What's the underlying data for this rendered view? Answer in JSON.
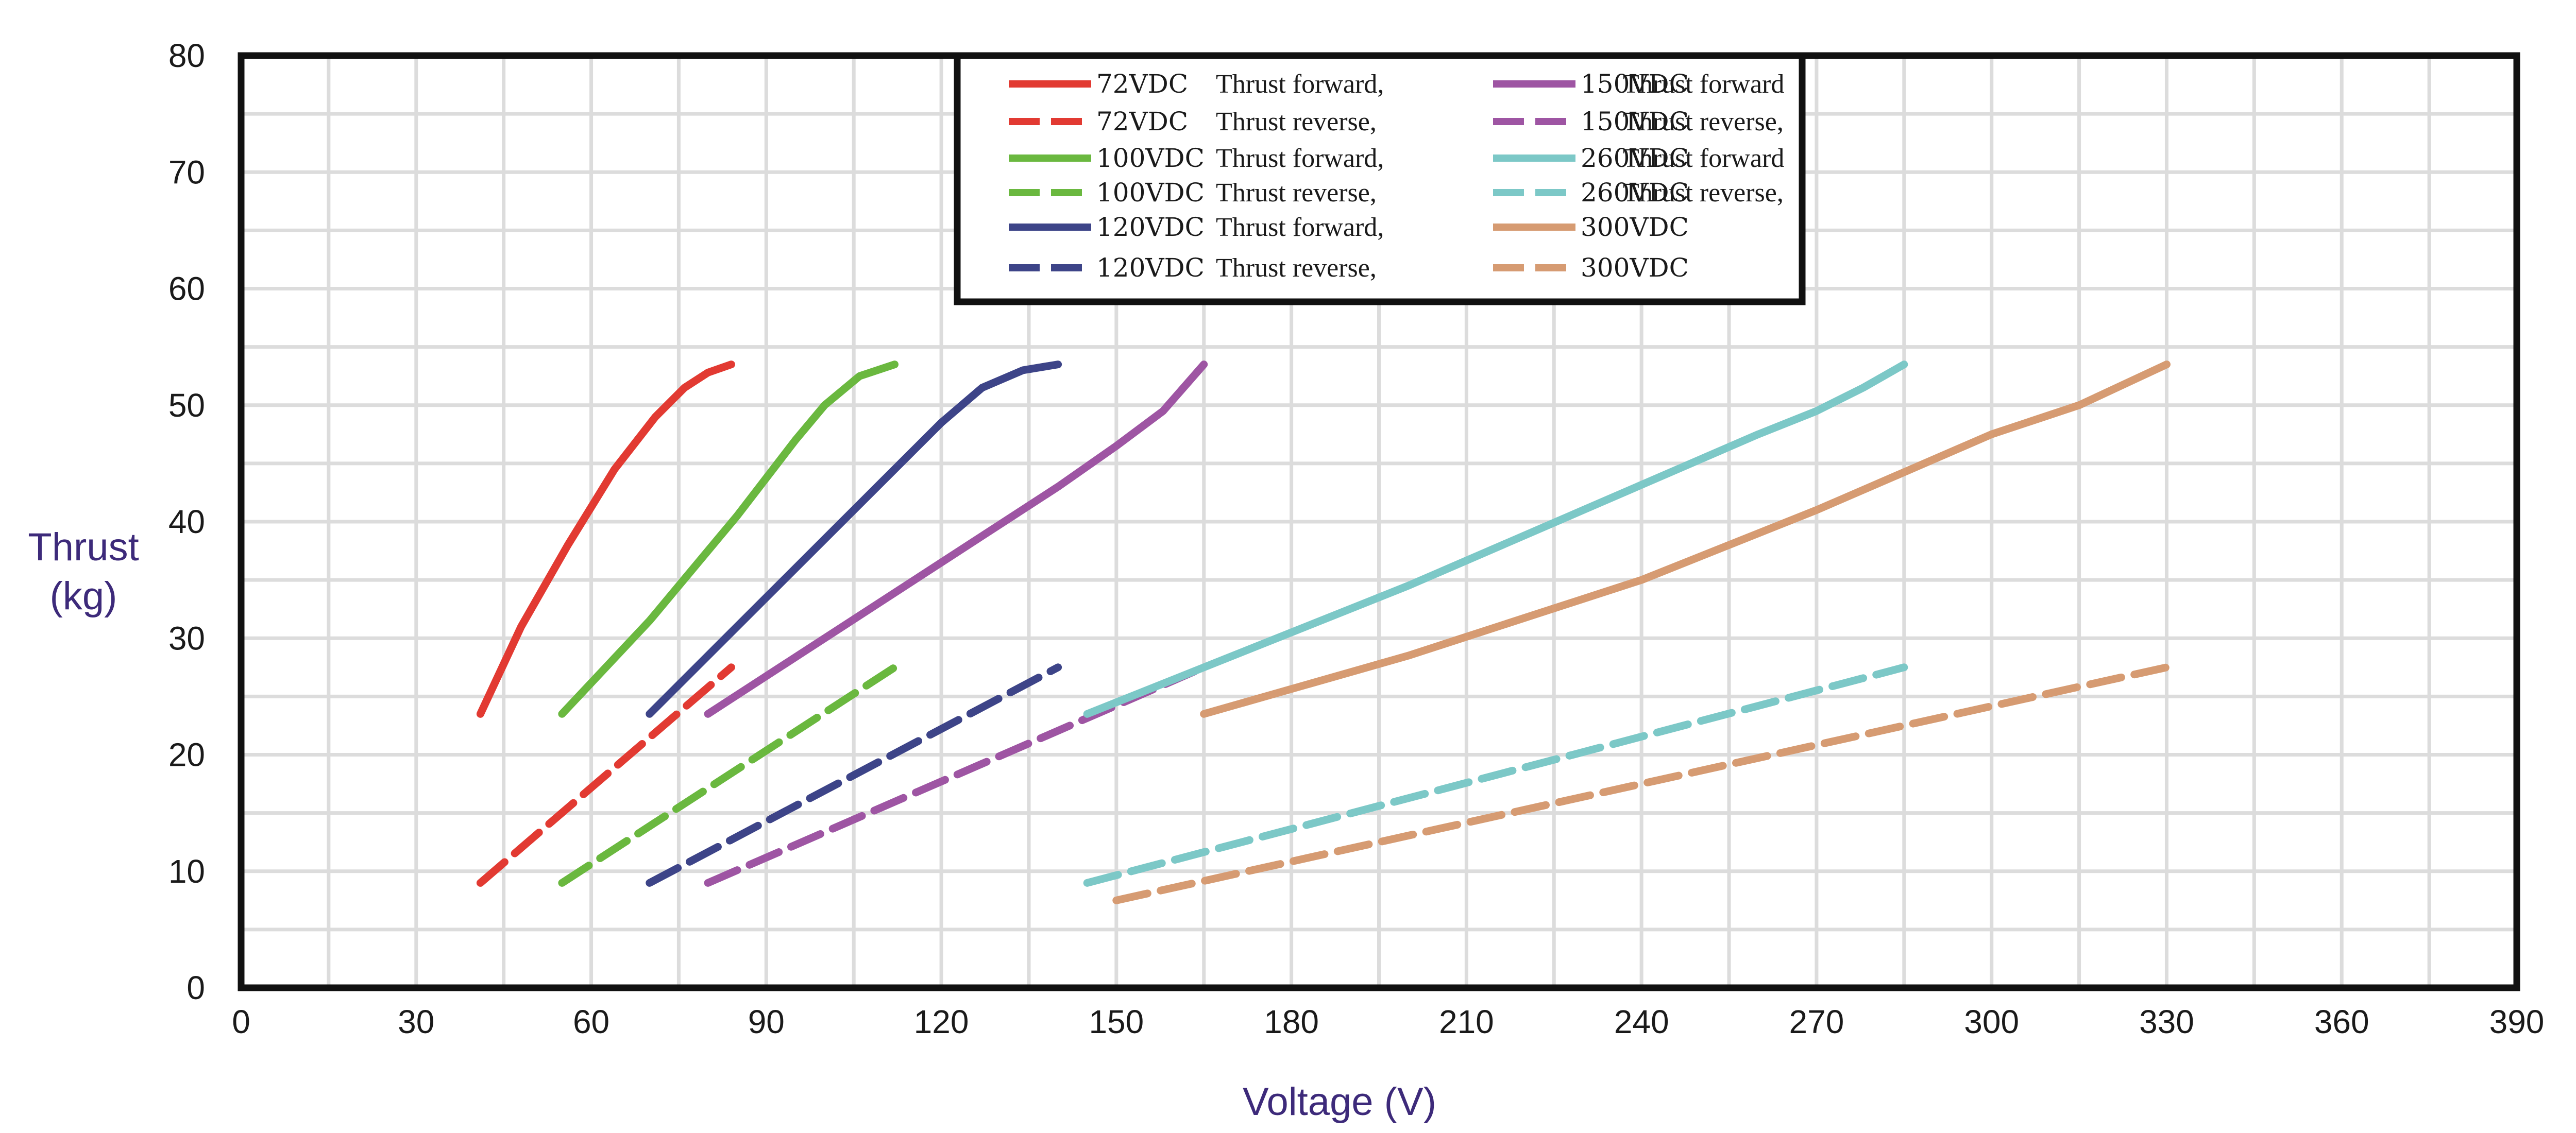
{
  "chart_data": {
    "type": "line",
    "title": "",
    "xlabel": "Voltage (V)",
    "ylabel": "Thrust (kg)",
    "ylabel_lines": [
      "Thrust",
      "(kg)"
    ],
    "xlim": [
      0,
      390
    ],
    "ylim": [
      0,
      80
    ],
    "x_ticks": [
      0,
      30,
      60,
      90,
      120,
      150,
      180,
      210,
      240,
      270,
      300,
      330,
      360,
      390
    ],
    "y_ticks": [
      0,
      10,
      20,
      30,
      40,
      50,
      60,
      70,
      80
    ],
    "grid": true,
    "legend_position": "top-center",
    "series": [
      {
        "name": "72VDC Thrust forward,",
        "voltage": "72VDC",
        "desc": "Thrust forward,",
        "color": "#e23a32",
        "dashed": false,
        "x": [
          41,
          48,
          56,
          64,
          71,
          76,
          80,
          84
        ],
        "y": [
          23.5,
          31,
          38,
          44.5,
          49,
          51.5,
          52.8,
          53.5
        ]
      },
      {
        "name": "72VDC Thrust reverse,",
        "voltage": "72VDC",
        "desc": "Thrust reverse,",
        "color": "#e23a32",
        "dashed": true,
        "x": [
          41,
          84
        ],
        "y": [
          9,
          27.5
        ]
      },
      {
        "name": "100VDC Thrust forward,",
        "voltage": "100VDC",
        "desc": "Thrust forward,",
        "color": "#6ab83f",
        "dashed": false,
        "x": [
          55,
          70,
          85,
          95,
          100,
          106,
          112
        ],
        "y": [
          23.5,
          31.5,
          40.5,
          47,
          50,
          52.5,
          53.5
        ]
      },
      {
        "name": "100VDC Thrust reverse,",
        "voltage": "100VDC",
        "desc": "Thrust reverse,",
        "color": "#6ab83f",
        "dashed": true,
        "x": [
          55,
          112
        ],
        "y": [
          9,
          27.5
        ]
      },
      {
        "name": "120VDC Thrust forward,",
        "voltage": "120VDC",
        "desc": "Thrust forward,",
        "color": "#3d4488",
        "dashed": false,
        "x": [
          70,
          90,
          110,
          120,
          127,
          134,
          140
        ],
        "y": [
          23.5,
          33.5,
          43.5,
          48.5,
          51.5,
          53,
          53.5
        ]
      },
      {
        "name": "120VDC Thrust reverse,",
        "voltage": "120VDC",
        "desc": "Thrust reverse,",
        "color": "#3d4488",
        "dashed": true,
        "x": [
          70,
          140
        ],
        "y": [
          9,
          27.5
        ]
      },
      {
        "name": "150VDC Thrust forward",
        "voltage": "150VDC",
        "desc": "Thrust forward",
        "color": "#9e55a3",
        "dashed": false,
        "x": [
          80,
          100,
          120,
          140,
          150,
          158,
          165
        ],
        "y": [
          23.5,
          30,
          36.5,
          43,
          46.5,
          49.5,
          53.5
        ]
      },
      {
        "name": "150VDC Thrust reverse,",
        "voltage": "150VDC",
        "desc": "Thrust reverse,",
        "color": "#9e55a3",
        "dashed": true,
        "x": [
          80,
          165
        ],
        "y": [
          9,
          27.5
        ]
      },
      {
        "name": "260VDC Thrust forward",
        "voltage": "260VDC",
        "desc": "Thrust forward",
        "color": "#7cc8c7",
        "dashed": false,
        "x": [
          145,
          165,
          200,
          230,
          260,
          270,
          278,
          285
        ],
        "y": [
          23.5,
          27.5,
          34.5,
          41,
          47.5,
          49.5,
          51.5,
          53.5
        ]
      },
      {
        "name": "260VDC Thrust reverse,",
        "voltage": "260VDC",
        "desc": "Thrust reverse,",
        "color": "#7cc8c7",
        "dashed": true,
        "x": [
          145,
          285
        ],
        "y": [
          9,
          27.5
        ]
      },
      {
        "name": "300VDC",
        "voltage": "300VDC",
        "desc": "",
        "color": "#d69b72",
        "dashed": false,
        "x": [
          165,
          200,
          240,
          270,
          300,
          315,
          330
        ],
        "y": [
          23.5,
          28.5,
          35,
          41,
          47.5,
          50,
          53.5
        ]
      },
      {
        "name": "300VDC",
        "voltage": "300VDC",
        "desc": "",
        "color": "#d69b72",
        "dashed": true,
        "x": [
          150,
          330
        ],
        "y": [
          7.5,
          27.5
        ]
      }
    ]
  }
}
